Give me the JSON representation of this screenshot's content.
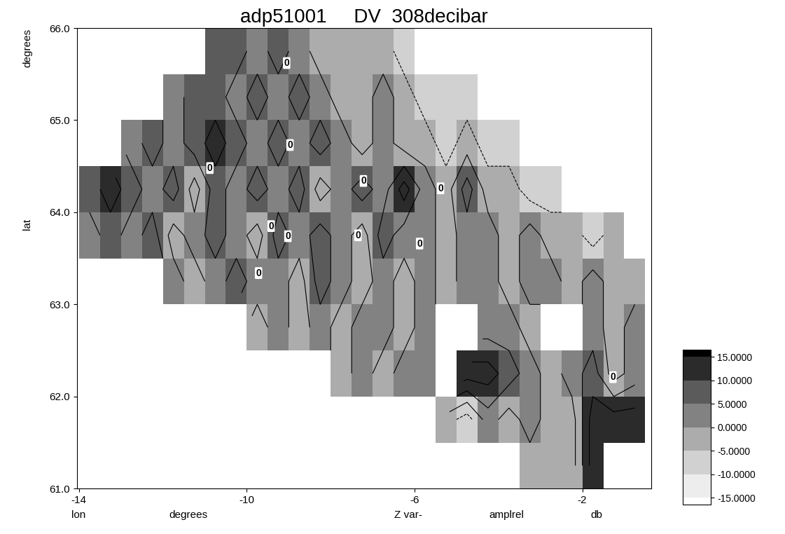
{
  "chart_data": {
    "type": "heatmap",
    "title": "adp51001     DV  308decibar",
    "xlabel": [
      "lon",
      "degrees",
      "Z var-",
      "amplrel",
      "db"
    ],
    "ylabel": [
      "degrees",
      "lat"
    ],
    "x": [
      -13.75,
      -13.25,
      -12.75,
      -12.25,
      -11.75,
      -11.25,
      -10.75,
      -10.25,
      -9.75,
      -9.25,
      -8.75,
      -8.25,
      -7.75,
      -7.25,
      -6.75,
      -6.25,
      -5.75,
      -5.25,
      -4.75,
      -4.25,
      -3.75,
      -3.25,
      -2.75,
      -2.25,
      -1.75,
      -1.25,
      -0.75
    ],
    "y": [
      61.25,
      61.75,
      62.25,
      62.75,
      63.25,
      63.75,
      64.25,
      64.75,
      65.25,
      65.75
    ],
    "cells": [
      [
        null,
        null,
        null,
        null,
        null,
        null,
        null,
        null,
        null,
        null,
        null,
        null,
        null,
        null,
        null,
        null,
        null,
        null,
        null,
        null,
        null,
        -2.5,
        -2.5,
        -2.5,
        12.5,
        null,
        null
      ],
      [
        null,
        null,
        null,
        null,
        null,
        null,
        null,
        null,
        null,
        null,
        null,
        null,
        null,
        null,
        null,
        null,
        null,
        -2.5,
        -7.5,
        2.5,
        -2.5,
        2.5,
        -2.5,
        -2.5,
        12.5,
        12.5,
        12.5
      ],
      [
        null,
        null,
        null,
        null,
        null,
        null,
        null,
        null,
        null,
        null,
        null,
        null,
        -2.5,
        2.5,
        -2.5,
        2.5,
        2.5,
        null,
        12.5,
        12.5,
        7.5,
        2.5,
        -2.5,
        2.5,
        7.5,
        -2.5,
        2.5
      ],
      [
        null,
        null,
        null,
        null,
        null,
        null,
        null,
        null,
        -2.5,
        2.5,
        -2.5,
        2.5,
        -2.5,
        2.5,
        2.5,
        -2.5,
        2.5,
        null,
        null,
        2.5,
        2.5,
        -2.5,
        null,
        null,
        2.5,
        -2.5,
        2.5
      ],
      [
        null,
        null,
        null,
        null,
        2.5,
        -2.5,
        2.5,
        7.5,
        2.5,
        2.5,
        -2.5,
        7.5,
        2.5,
        -2.5,
        2.5,
        -2.5,
        2.5,
        -2.5,
        2.5,
        2.5,
        -2.5,
        2.5,
        2.5,
        -2.5,
        2.5,
        -2.5,
        -2.5
      ],
      [
        2.5,
        7.5,
        2.5,
        7.5,
        -2.5,
        2.5,
        7.5,
        2.5,
        -2.5,
        7.5,
        2.5,
        7.5,
        2.5,
        -2.5,
        7.5,
        2.5,
        2.5,
        -2.5,
        2.5,
        2.5,
        -2.5,
        2.5,
        -2.5,
        -2.5,
        -7.5,
        -2.5,
        null
      ],
      [
        7.5,
        12.5,
        7.5,
        2.5,
        7.5,
        -2.5,
        7.5,
        2.5,
        7.5,
        2.5,
        7.5,
        -2.5,
        2.5,
        7.5,
        2.5,
        12.5,
        2.5,
        -2.5,
        7.5,
        -2.5,
        -2.5,
        -7.5,
        -7.5,
        null,
        null,
        null,
        null
      ],
      [
        null,
        null,
        2.5,
        7.5,
        2.5,
        7.5,
        12.5,
        7.5,
        2.5,
        7.5,
        2.5,
        7.5,
        2.5,
        -2.5,
        2.5,
        -2.5,
        -2.5,
        -7.5,
        -2.5,
        -7.5,
        -7.5,
        null,
        null,
        null,
        null,
        null,
        null
      ],
      [
        null,
        null,
        null,
        null,
        2.5,
        7.5,
        7.5,
        2.5,
        7.5,
        2.5,
        7.5,
        2.5,
        -2.5,
        -2.5,
        2.5,
        -2.5,
        -7.5,
        -7.5,
        -7.5,
        null,
        null,
        null,
        null,
        null,
        null,
        null,
        null
      ],
      [
        null,
        null,
        null,
        null,
        null,
        null,
        7.5,
        7.5,
        2.5,
        7.5,
        2.5,
        -2.5,
        -2.5,
        -2.5,
        -2.5,
        -7.5,
        null,
        null,
        null,
        null,
        null,
        null,
        null,
        null,
        null,
        null,
        null
      ]
    ],
    "xlim": [
      -14.05,
      -0.35
    ],
    "ylim": [
      61.0,
      66.0
    ],
    "xticks": [
      -14,
      -10,
      -6,
      -2
    ],
    "yticks": [
      61.0,
      62.0,
      63.0,
      64.0,
      65.0,
      66.0
    ],
    "colorbar": {
      "range": [
        -15,
        15
      ],
      "ticks": [
        {
          "value": 15,
          "label": "15.0000"
        },
        {
          "value": 10,
          "label": "10.0000"
        },
        {
          "value": 5,
          "label": "5.0000"
        },
        {
          "value": 0,
          "label": "0.0000"
        },
        {
          "value": -5,
          "label": "-5.0000"
        },
        {
          "value": -10,
          "label": "-10.0000"
        },
        {
          "value": -15,
          "label": "-15.0000"
        }
      ]
    },
    "annotations": [
      {
        "x": -9.05,
        "y": 65.62,
        "text": "0"
      },
      {
        "x": -8.97,
        "y": 64.73,
        "text": "0"
      },
      {
        "x": -10.88,
        "y": 64.48,
        "text": "0"
      },
      {
        "x": -9.42,
        "y": 63.85,
        "text": "0"
      },
      {
        "x": -9.02,
        "y": 63.74,
        "text": "0"
      },
      {
        "x": -9.72,
        "y": 63.34,
        "text": "0"
      },
      {
        "x": -7.22,
        "y": 64.34,
        "text": "0"
      },
      {
        "x": -5.38,
        "y": 64.26,
        "text": "0"
      },
      {
        "x": -7.35,
        "y": 63.75,
        "text": "0"
      },
      {
        "x": -5.88,
        "y": 63.66,
        "text": "0"
      },
      {
        "x": -1.27,
        "y": 62.21,
        "text": "0"
      }
    ]
  }
}
